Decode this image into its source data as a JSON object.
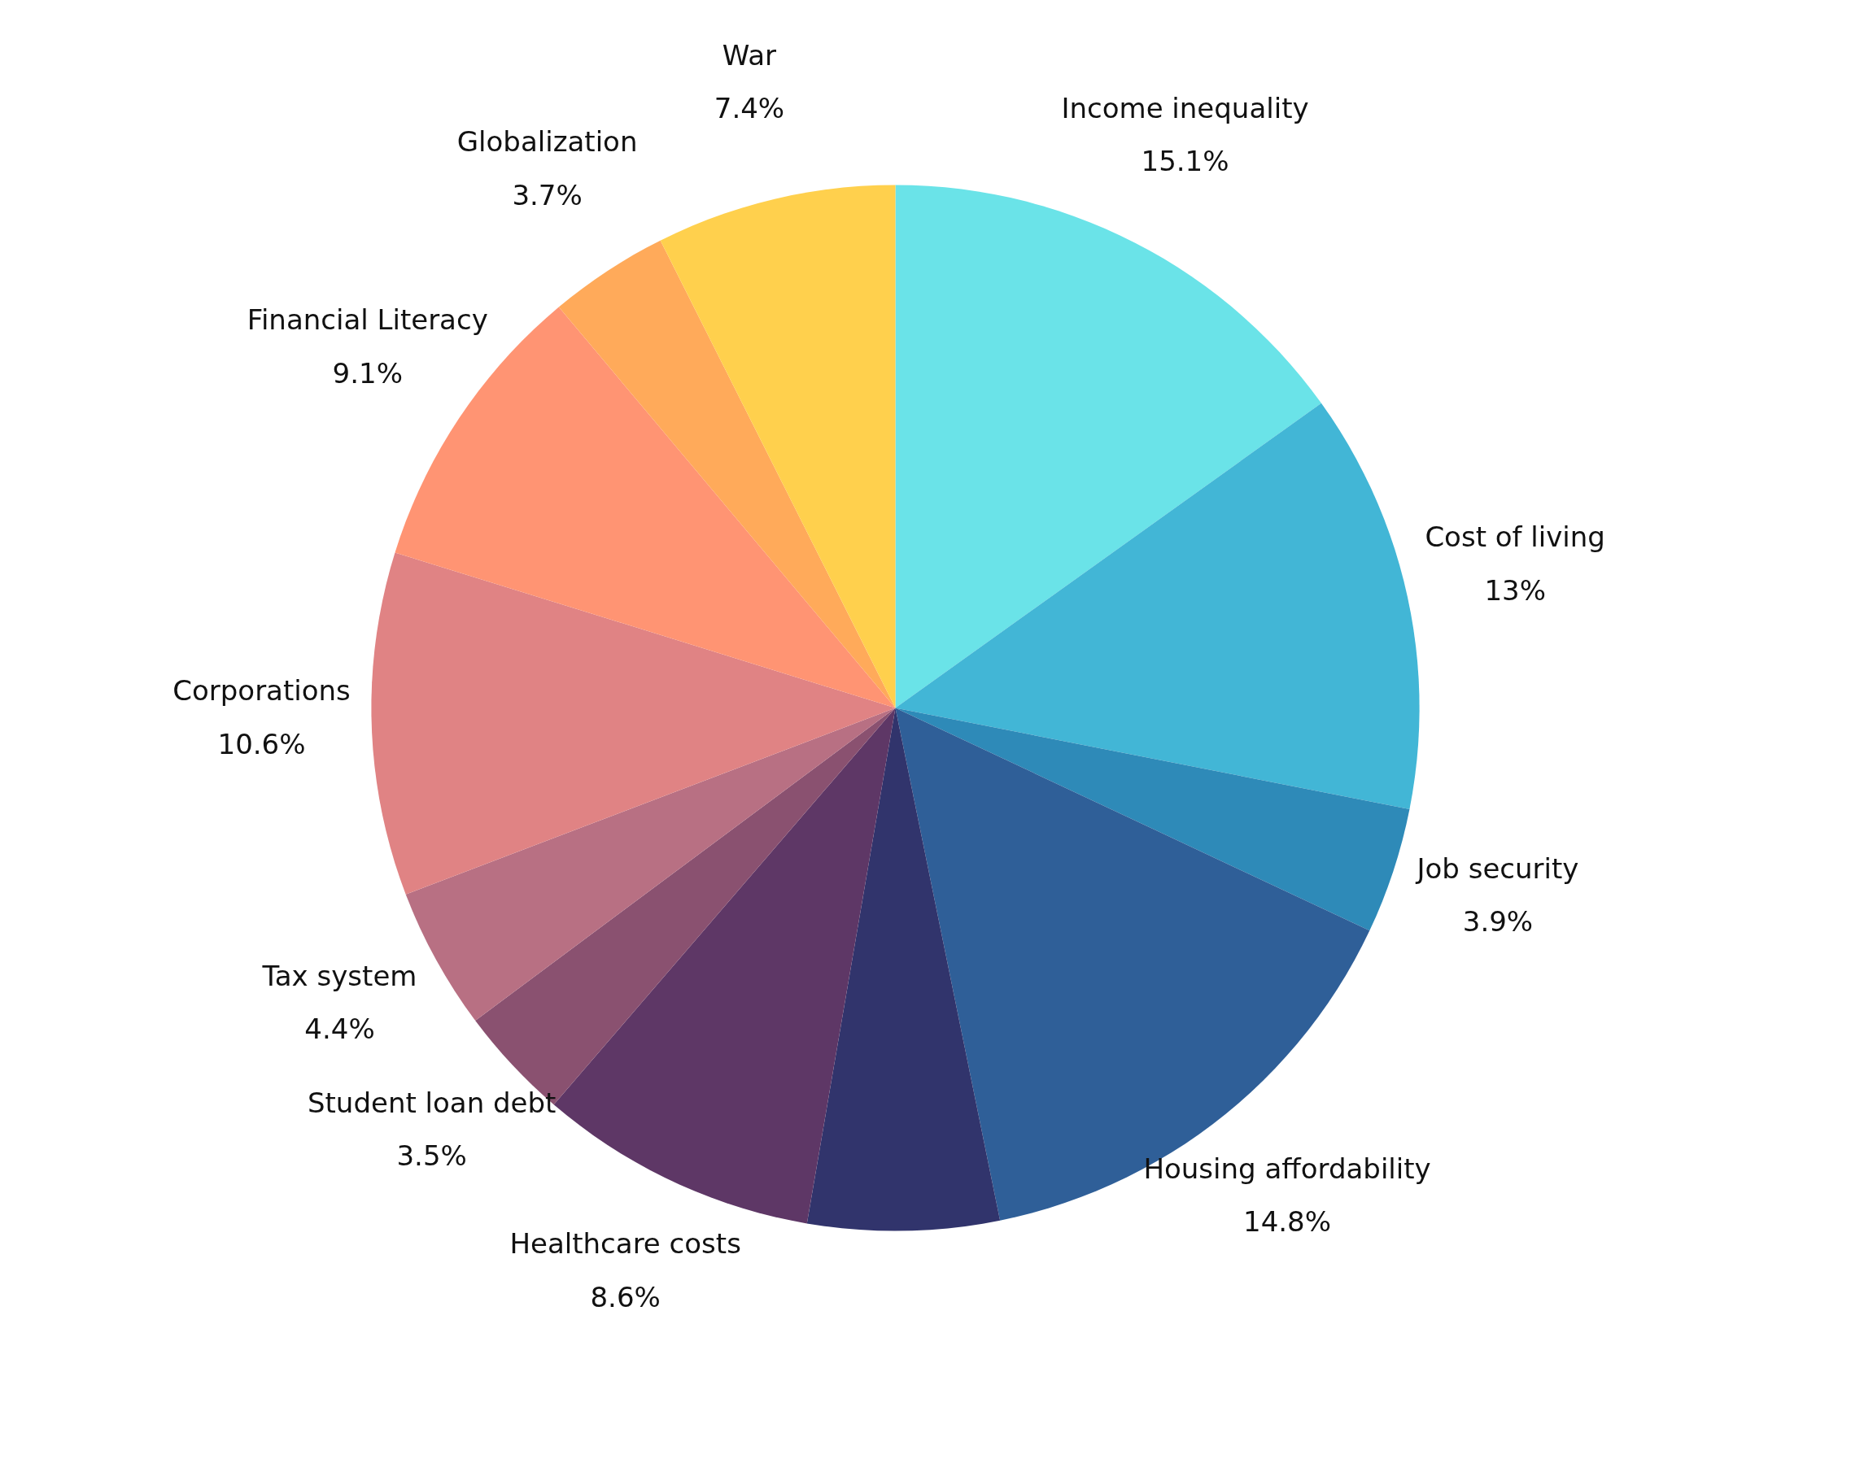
{
  "chart_data": {
    "type": "pie",
    "categories": [
      "Income inequality",
      "Cost of living",
      "Job security",
      "Housing affordability",
      null,
      "Healthcare costs",
      "Student loan debt",
      "Tax system",
      "Corporations",
      "Financial Literacy",
      "Globalization",
      "War"
    ],
    "values": [
      15.1,
      13,
      3.9,
      14.8,
      5.9,
      8.6,
      3.5,
      4.4,
      10.6,
      9.1,
      3.7,
      7.4
    ],
    "value_labels": [
      "15.1%",
      "13%",
      "3.9%",
      "14.8%",
      null,
      "8.6%",
      "3.5%",
      "4.4%",
      "10.6%",
      "9.1%",
      "3.7%",
      "7.4%"
    ],
    "colors": [
      "#6ae3e8",
      "#42b6d6",
      "#2e8ab8",
      "#2f5f98",
      "#31346c",
      "#5e3766",
      "#8a5170",
      "#b87083",
      "#e08384",
      "#ff9473",
      "#ffaa5a",
      "#ffd04d"
    ]
  }
}
